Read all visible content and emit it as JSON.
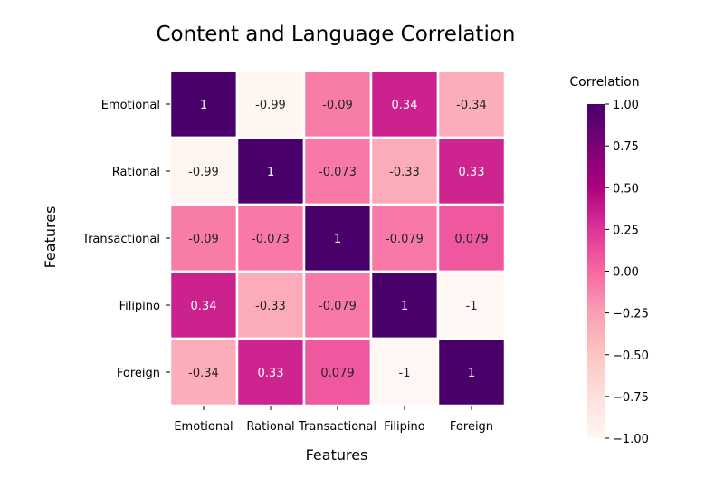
{
  "chart_data": {
    "type": "heatmap",
    "title": "Content and Language Correlation",
    "xlabel": "Features",
    "ylabel": "Features",
    "x_categories": [
      "Emotional",
      "Rational",
      "Transactional",
      "Filipino",
      "Foreign"
    ],
    "y_categories": [
      "Emotional",
      "Rational",
      "Transactional",
      "Filipino",
      "Foreign"
    ],
    "values": [
      [
        1,
        -0.99,
        -0.09,
        0.34,
        -0.34
      ],
      [
        -0.99,
        1,
        -0.073,
        -0.33,
        0.33
      ],
      [
        -0.09,
        -0.073,
        1,
        -0.079,
        0.079
      ],
      [
        0.34,
        -0.33,
        -0.079,
        1,
        -1
      ],
      [
        -0.34,
        0.33,
        0.079,
        -1,
        1
      ]
    ],
    "cell_labels": [
      [
        "1",
        "-0.99",
        "-0.09",
        "0.34",
        "-0.34"
      ],
      [
        "-0.99",
        "1",
        "-0.073",
        "-0.33",
        "0.33"
      ],
      [
        "-0.09",
        "-0.073",
        "1",
        "-0.079",
        "0.079"
      ],
      [
        "0.34",
        "-0.33",
        "-0.079",
        "1",
        "-1"
      ],
      [
        "-0.34",
        "0.33",
        "0.079",
        "-1",
        "1"
      ]
    ],
    "colorbar": {
      "title": "Correlation",
      "range": [
        -1,
        1
      ],
      "ticks": [
        1.0,
        0.75,
        0.5,
        0.25,
        0.0,
        -0.25,
        -0.5,
        -0.75,
        -1.0
      ],
      "tick_labels": [
        "1.00",
        "0.75",
        "0.50",
        "0.25",
        "0.00",
        "−0.25",
        "−0.50",
        "−0.75",
        "−1.00"
      ],
      "colormap": "RdPu",
      "color_stops": [
        "#fff7f3",
        "#fde0dd",
        "#fcc5c0",
        "#fa9fb5",
        "#f768a1",
        "#dd3497",
        "#ae017e",
        "#7a0177",
        "#49006a"
      ]
    },
    "grid": false,
    "cell_border_color": "#ffffff"
  }
}
